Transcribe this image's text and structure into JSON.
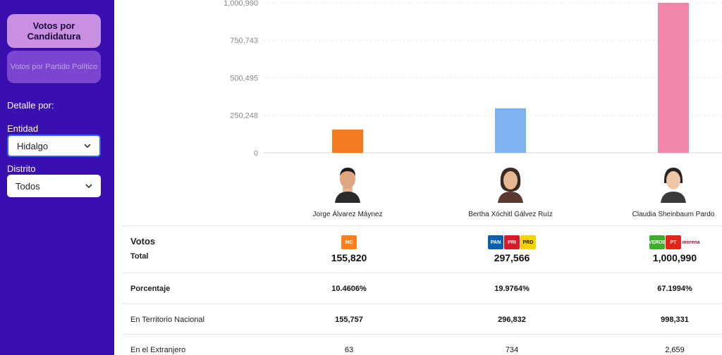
{
  "sidebar": {
    "tab_candidatura": "Votos por Candidatura",
    "tab_partido": "Votos por Partido Político",
    "detalle_label": "Detalle por:",
    "entidad_label": "Entidad",
    "entidad_value": "Hidalgo",
    "distrito_label": "Distrito",
    "distrito_value": "Todos"
  },
  "chart_data": {
    "type": "bar",
    "categories": [
      "Jorge Álvarez Máynez",
      "Bertha Xóchitl Gálvez Ruíz",
      "Claudia Sheinbaum Pardo"
    ],
    "values": [
      155820,
      297566,
      1000990
    ],
    "colors": [
      "#f47c20",
      "#7fb2f3",
      "#ee87ab"
    ],
    "yticks": [
      0,
      250248,
      500495,
      750743,
      1000990
    ],
    "ytick_labels": [
      "0",
      "250,248",
      "500,495",
      "750,743",
      "1,000,990"
    ],
    "ylim": [
      0,
      1000990
    ],
    "grid": true
  },
  "candidates": [
    {
      "name": "Jorge Álvarez Máynez",
      "parties": [
        "MC"
      ],
      "votos_total": "155,820",
      "porcentaje": "10.4606%",
      "territorio": "155,757",
      "extranjero": "63"
    },
    {
      "name": "Bertha Xóchitl Gálvez Ruíz",
      "parties": [
        "PAN",
        "PRI",
        "PRD"
      ],
      "votos_total": "297,566",
      "porcentaje": "19.9764%",
      "territorio": "296,832",
      "extranjero": "734"
    },
    {
      "name": "Claudia Sheinbaum Pardo",
      "parties": [
        "VERDE",
        "PT",
        "morena"
      ],
      "votos_total": "1,000,990",
      "porcentaje": "67.1994%",
      "territorio": "998,331",
      "extranjero": "2,659"
    }
  ],
  "table": {
    "votos_label": "Votos",
    "total_label": "Total",
    "porcentaje_label": "Porcentaje",
    "territorio_label": "En Territorio Nacional",
    "extranjero_label": "En el Extranjero"
  },
  "colors": {
    "sidebar_bg": "#3a0fb0",
    "tab_active": "#c98fe0",
    "tab_inactive": "#7c45cf"
  }
}
